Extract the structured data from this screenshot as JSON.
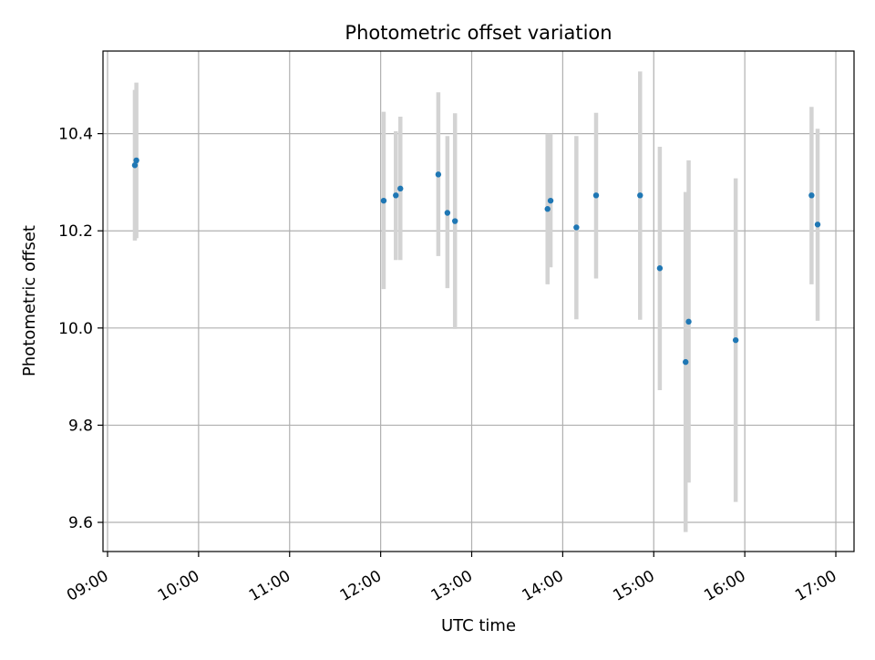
{
  "chart_data": {
    "type": "scatter",
    "title": "Photometric offset variation",
    "xlabel": "UTC time",
    "ylabel": "Photometric offset",
    "x_tick_labels": [
      "09:00",
      "10:00",
      "11:00",
      "12:00",
      "13:00",
      "14:00",
      "15:00",
      "16:00",
      "17:00"
    ],
    "y_tick_labels": [
      "9.6",
      "9.8",
      "10.0",
      "10.2",
      "10.4"
    ],
    "y_ticks": [
      9.6,
      9.8,
      10.0,
      10.2,
      10.4
    ],
    "xlim": [
      "08:57",
      "17:12"
    ],
    "ylim": [
      9.54,
      10.57
    ],
    "grid": true,
    "legend": "none",
    "point_color": "#1f77b4",
    "errorbar_color": "#d3d3d3",
    "points": [
      {
        "x": "09:18",
        "y": 10.335,
        "ylow": 10.18,
        "yhigh": 10.49
      },
      {
        "x": "09:19",
        "y": 10.345,
        "ylow": 10.185,
        "yhigh": 10.505
      },
      {
        "x": "12:02",
        "y": 10.262,
        "ylow": 10.08,
        "yhigh": 10.445
      },
      {
        "x": "12:10",
        "y": 10.273,
        "ylow": 10.14,
        "yhigh": 10.405
      },
      {
        "x": "12:13",
        "y": 10.287,
        "ylow": 10.14,
        "yhigh": 10.435
      },
      {
        "x": "12:38",
        "y": 10.316,
        "ylow": 10.148,
        "yhigh": 10.485
      },
      {
        "x": "12:44",
        "y": 10.237,
        "ylow": 10.082,
        "yhigh": 10.395
      },
      {
        "x": "12:49",
        "y": 10.22,
        "ylow": 9.998,
        "yhigh": 10.442
      },
      {
        "x": "13:50",
        "y": 10.245,
        "ylow": 10.09,
        "yhigh": 10.4
      },
      {
        "x": "13:52",
        "y": 10.262,
        "ylow": 10.125,
        "yhigh": 10.4
      },
      {
        "x": "14:09",
        "y": 10.207,
        "ylow": 10.018,
        "yhigh": 10.395
      },
      {
        "x": "14:22",
        "y": 10.273,
        "ylow": 10.102,
        "yhigh": 10.443
      },
      {
        "x": "14:51",
        "y": 10.273,
        "ylow": 10.017,
        "yhigh": 10.528
      },
      {
        "x": "15:04",
        "y": 10.123,
        "ylow": 9.872,
        "yhigh": 10.373
      },
      {
        "x": "15:21",
        "y": 9.93,
        "ylow": 9.58,
        "yhigh": 10.28
      },
      {
        "x": "15:23",
        "y": 10.013,
        "ylow": 9.682,
        "yhigh": 10.345
      },
      {
        "x": "15:54",
        "y": 9.975,
        "ylow": 9.642,
        "yhigh": 10.308
      },
      {
        "x": "16:44",
        "y": 10.273,
        "ylow": 10.09,
        "yhigh": 10.455
      },
      {
        "x": "16:48",
        "y": 10.213,
        "ylow": 10.015,
        "yhigh": 10.41
      }
    ]
  }
}
